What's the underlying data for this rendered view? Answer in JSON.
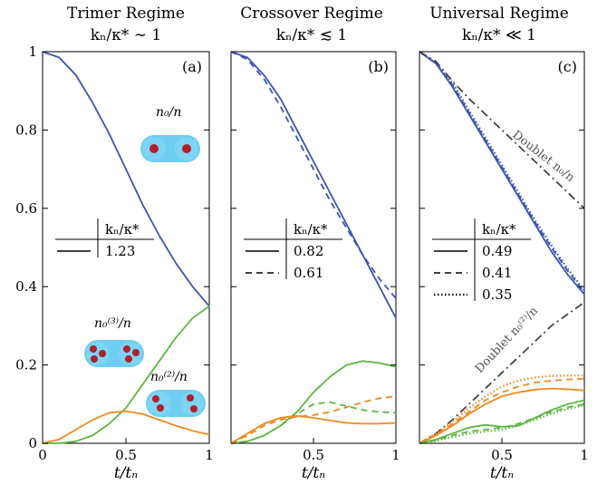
{
  "chart_data": [
    {
      "type": "line",
      "panel_label": "(a)",
      "title": "Trimer Regime",
      "subtitle": "kₙ/κ* ∼ 1",
      "xlabel": "t/tₙ",
      "xlim": [
        0,
        1
      ],
      "ylim": [
        0,
        1
      ],
      "xticks": [
        "0",
        "0.5",
        "1"
      ],
      "yticks": [
        "0",
        "0.2",
        "0.4",
        "0.6",
        "0.8",
        "1"
      ],
      "legend": {
        "header": "kₙ/κ*",
        "entries": [
          {
            "label": "1.23",
            "style": "solid"
          }
        ]
      },
      "annotations": [
        "n₀/n",
        "n₀⁽³⁾/n",
        "n₀⁽²⁾/n"
      ],
      "series": [
        {
          "color": "#3a55b4",
          "style": "solid",
          "x": [
            0,
            0.1,
            0.2,
            0.3,
            0.4,
            0.5,
            0.6,
            0.7,
            0.8,
            0.9,
            1.0
          ],
          "y": [
            1.0,
            0.985,
            0.94,
            0.87,
            0.79,
            0.7,
            0.61,
            0.53,
            0.46,
            0.4,
            0.35
          ]
        },
        {
          "color": "#5ab83e",
          "style": "solid",
          "x": [
            0,
            0.1,
            0.2,
            0.3,
            0.4,
            0.5,
            0.6,
            0.7,
            0.8,
            0.9,
            1.0
          ],
          "y": [
            0,
            0.0,
            0.005,
            0.02,
            0.05,
            0.09,
            0.15,
            0.21,
            0.27,
            0.32,
            0.35
          ]
        },
        {
          "color": "#f08a1c",
          "style": "solid",
          "x": [
            0,
            0.1,
            0.2,
            0.3,
            0.4,
            0.5,
            0.6,
            0.7,
            0.8,
            0.9,
            1.0
          ],
          "y": [
            0,
            0.01,
            0.035,
            0.06,
            0.078,
            0.082,
            0.075,
            0.06,
            0.045,
            0.032,
            0.022
          ]
        }
      ]
    },
    {
      "type": "line",
      "panel_label": "(b)",
      "title": "Crossover Regime",
      "subtitle": "kₙ/κ* ≲ 1",
      "xlabel": "t/tₙ",
      "xlim": [
        0,
        1
      ],
      "ylim": [
        0,
        1
      ],
      "xticks": [
        "0.5",
        "1"
      ],
      "legend": {
        "header": "kₙ/κ*",
        "entries": [
          {
            "label": "0.82",
            "style": "solid"
          },
          {
            "label": "0.61",
            "style": "dashed"
          }
        ]
      },
      "series": [
        {
          "color": "#3a55b4",
          "style": "solid",
          "x": [
            0,
            0.1,
            0.2,
            0.3,
            0.4,
            0.5,
            0.6,
            0.7,
            0.8,
            0.9,
            1.0
          ],
          "y": [
            1.0,
            0.985,
            0.94,
            0.88,
            0.8,
            0.72,
            0.64,
            0.56,
            0.48,
            0.4,
            0.32
          ]
        },
        {
          "color": "#3a55b4",
          "style": "dashed",
          "x": [
            0,
            0.1,
            0.2,
            0.3,
            0.4,
            0.5,
            0.6,
            0.7,
            0.8,
            0.9,
            1.0
          ],
          "y": [
            1.0,
            0.98,
            0.93,
            0.86,
            0.78,
            0.7,
            0.62,
            0.55,
            0.48,
            0.42,
            0.37
          ]
        },
        {
          "color": "#5ab83e",
          "style": "solid",
          "x": [
            0,
            0.1,
            0.2,
            0.3,
            0.4,
            0.5,
            0.6,
            0.7,
            0.8,
            0.9,
            1.0
          ],
          "y": [
            0,
            0.005,
            0.02,
            0.045,
            0.08,
            0.13,
            0.17,
            0.2,
            0.21,
            0.205,
            0.195
          ]
        },
        {
          "color": "#5ab83e",
          "style": "dashed",
          "x": [
            0,
            0.1,
            0.2,
            0.3,
            0.4,
            0.5,
            0.6,
            0.7,
            0.8,
            0.9,
            1.0
          ],
          "y": [
            0,
            0.005,
            0.02,
            0.045,
            0.075,
            0.1,
            0.105,
            0.095,
            0.085,
            0.08,
            0.078
          ]
        },
        {
          "color": "#f08a1c",
          "style": "solid",
          "x": [
            0,
            0.1,
            0.2,
            0.3,
            0.4,
            0.5,
            0.6,
            0.7,
            0.8,
            0.9,
            1.0
          ],
          "y": [
            0,
            0.025,
            0.05,
            0.065,
            0.07,
            0.065,
            0.058,
            0.052,
            0.05,
            0.05,
            0.052
          ]
        },
        {
          "color": "#f08a1c",
          "style": "dashed",
          "x": [
            0,
            0.1,
            0.2,
            0.3,
            0.4,
            0.5,
            0.6,
            0.7,
            0.8,
            0.9,
            1.0
          ],
          "y": [
            0,
            0.02,
            0.045,
            0.06,
            0.068,
            0.072,
            0.08,
            0.092,
            0.105,
            0.115,
            0.12
          ]
        }
      ]
    },
    {
      "type": "line",
      "panel_label": "(c)",
      "title": "Universal Regime",
      "subtitle": "kₙ/κ* ≪ 1",
      "xlabel": "t/tₙ",
      "xlim": [
        0,
        1
      ],
      "ylim": [
        0,
        1
      ],
      "xticks": [
        "0.5",
        "1"
      ],
      "legend": {
        "header": "kₙ/κ*",
        "entries": [
          {
            "label": "0.49",
            "style": "solid"
          },
          {
            "label": "0.41",
            "style": "dashed"
          },
          {
            "label": "0.35",
            "style": "dotted"
          }
        ]
      },
      "annotations": [
        "Doublet n₀/n",
        "Doublet n₀⁽²⁾/n"
      ],
      "series": [
        {
          "color": "#3a55b4",
          "style": "solid",
          "x": [
            0,
            0.1,
            0.2,
            0.3,
            0.4,
            0.5,
            0.6,
            0.7,
            0.8,
            0.9,
            1.0
          ],
          "y": [
            1.0,
            0.97,
            0.91,
            0.84,
            0.77,
            0.7,
            0.63,
            0.56,
            0.49,
            0.43,
            0.38
          ]
        },
        {
          "color": "#3a55b4",
          "style": "dashed",
          "x": [
            0,
            0.1,
            0.2,
            0.3,
            0.4,
            0.5,
            0.6,
            0.7,
            0.8,
            0.9,
            1.0
          ],
          "y": [
            1.0,
            0.97,
            0.915,
            0.845,
            0.775,
            0.705,
            0.635,
            0.565,
            0.5,
            0.44,
            0.385
          ]
        },
        {
          "color": "#3a55b4",
          "style": "dotted",
          "x": [
            0,
            0.1,
            0.2,
            0.3,
            0.4,
            0.5,
            0.6,
            0.7,
            0.8,
            0.9,
            1.0
          ],
          "y": [
            1.0,
            0.97,
            0.92,
            0.85,
            0.78,
            0.71,
            0.64,
            0.57,
            0.505,
            0.445,
            0.39
          ]
        },
        {
          "color": "#444444",
          "style": "dashdot",
          "x": [
            0,
            0.1,
            0.2,
            0.3,
            0.4,
            0.5,
            0.6,
            0.7,
            0.8,
            0.9,
            1.0
          ],
          "y": [
            1.0,
            0.975,
            0.925,
            0.88,
            0.84,
            0.8,
            0.76,
            0.72,
            0.68,
            0.64,
            0.6
          ]
        },
        {
          "color": "#444444",
          "style": "dashdot",
          "x": [
            0,
            0.1,
            0.2,
            0.3,
            0.4,
            0.5,
            0.6,
            0.7,
            0.8,
            0.9,
            1.0
          ],
          "y": [
            0,
            0.025,
            0.06,
            0.1,
            0.14,
            0.18,
            0.22,
            0.26,
            0.3,
            0.33,
            0.36
          ]
        },
        {
          "color": "#f08a1c",
          "style": "solid",
          "x": [
            0,
            0.1,
            0.2,
            0.3,
            0.4,
            0.5,
            0.6,
            0.7,
            0.8,
            0.9,
            1.0
          ],
          "y": [
            0,
            0.02,
            0.045,
            0.075,
            0.1,
            0.12,
            0.13,
            0.137,
            0.14,
            0.138,
            0.135
          ]
        },
        {
          "color": "#f08a1c",
          "style": "dashed",
          "x": [
            0,
            0.1,
            0.2,
            0.3,
            0.4,
            0.5,
            0.6,
            0.7,
            0.8,
            0.9,
            1.0
          ],
          "y": [
            0,
            0.022,
            0.05,
            0.08,
            0.11,
            0.13,
            0.145,
            0.155,
            0.16,
            0.163,
            0.165
          ]
        },
        {
          "color": "#f08a1c",
          "style": "dotted",
          "x": [
            0,
            0.1,
            0.2,
            0.3,
            0.4,
            0.5,
            0.6,
            0.7,
            0.8,
            0.9,
            1.0
          ],
          "y": [
            0,
            0.025,
            0.055,
            0.09,
            0.12,
            0.145,
            0.16,
            0.168,
            0.172,
            0.173,
            0.173
          ]
        },
        {
          "color": "#5ab83e",
          "style": "solid",
          "x": [
            0,
            0.1,
            0.2,
            0.3,
            0.4,
            0.5,
            0.6,
            0.7,
            0.8,
            0.9,
            1.0
          ],
          "y": [
            0,
            0.01,
            0.025,
            0.04,
            0.047,
            0.042,
            0.045,
            0.065,
            0.085,
            0.1,
            0.11
          ]
        },
        {
          "color": "#5ab83e",
          "style": "dashed",
          "x": [
            0,
            0.1,
            0.2,
            0.3,
            0.4,
            0.5,
            0.6,
            0.7,
            0.8,
            0.9,
            1.0
          ],
          "y": [
            0,
            0.008,
            0.02,
            0.03,
            0.035,
            0.04,
            0.05,
            0.065,
            0.08,
            0.092,
            0.1
          ]
        },
        {
          "color": "#5ab83e",
          "style": "dotted",
          "x": [
            0,
            0.1,
            0.2,
            0.3,
            0.4,
            0.5,
            0.6,
            0.7,
            0.8,
            0.9,
            1.0
          ],
          "y": [
            0,
            0.006,
            0.016,
            0.025,
            0.03,
            0.035,
            0.045,
            0.06,
            0.075,
            0.088,
            0.097
          ]
        }
      ]
    }
  ]
}
